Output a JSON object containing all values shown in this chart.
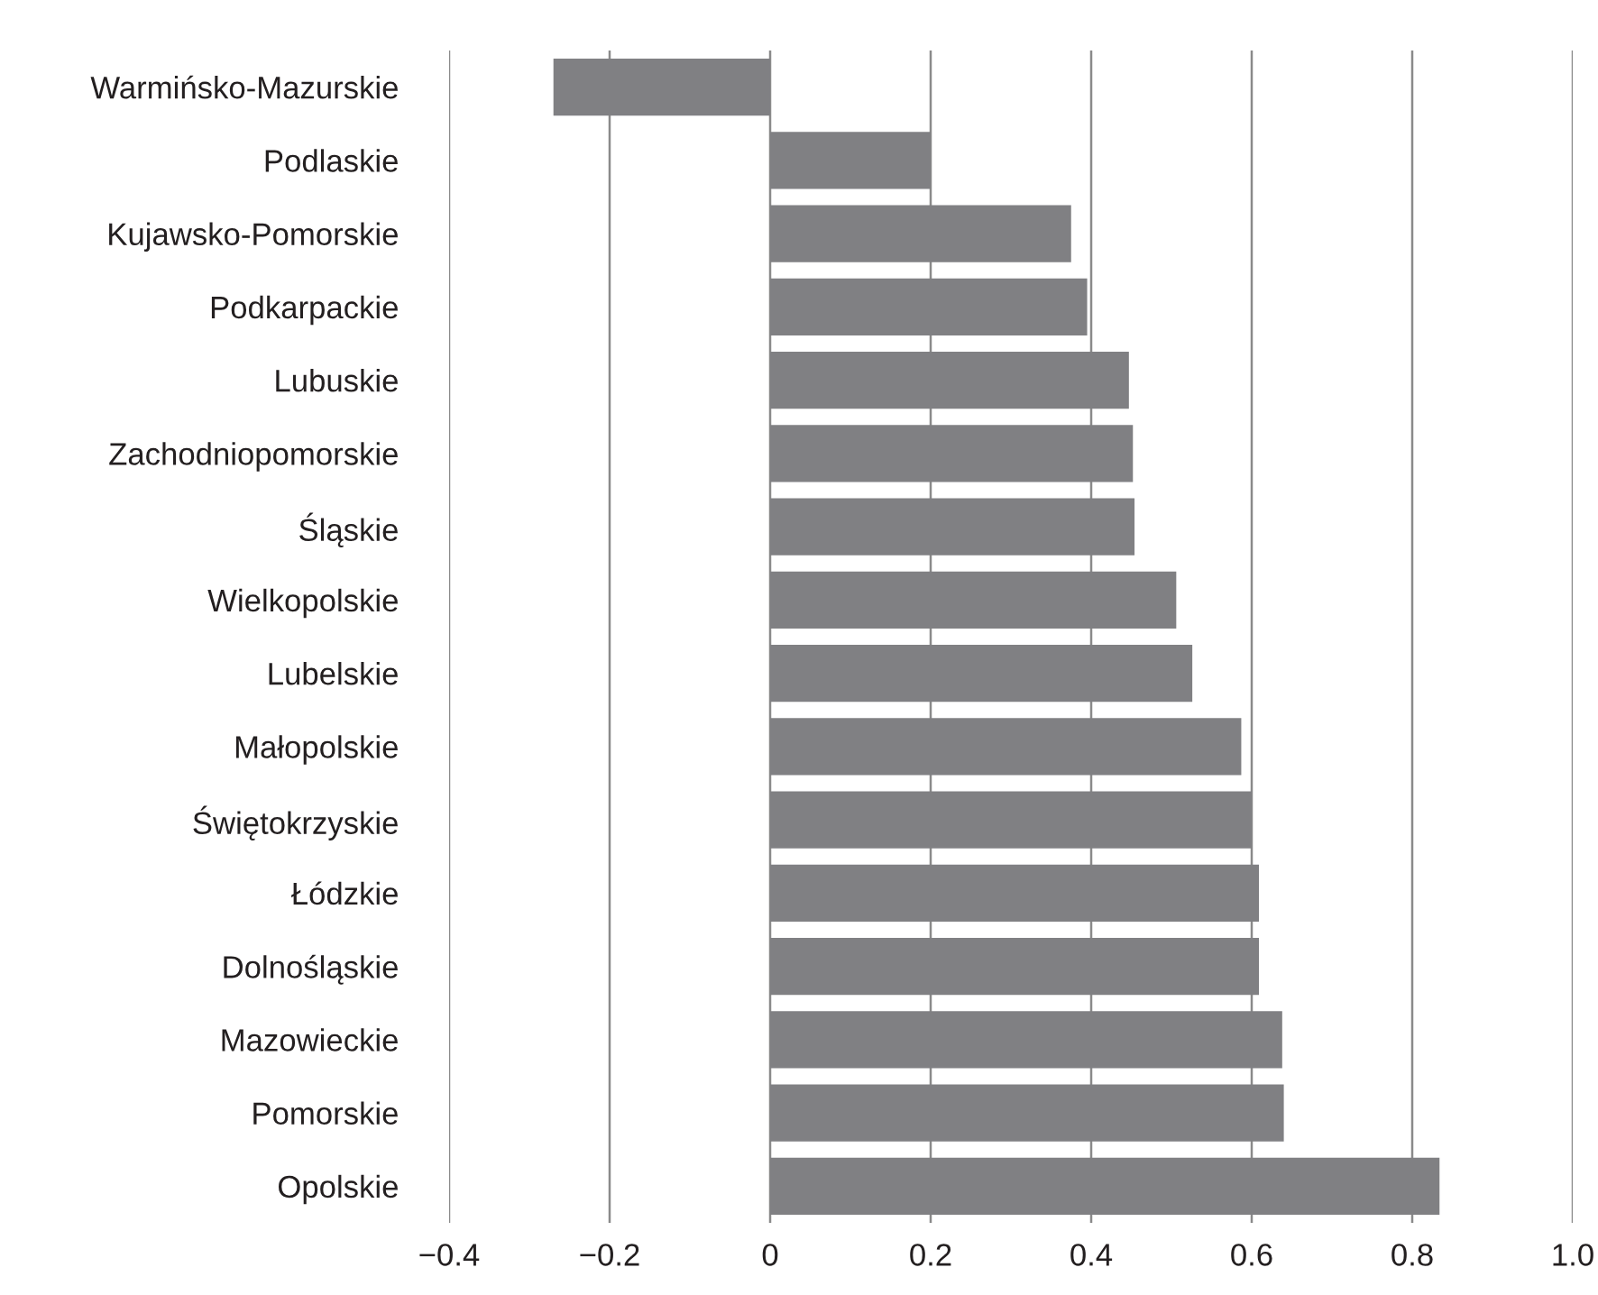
{
  "chart_data": {
    "type": "bar",
    "orientation": "horizontal",
    "categories": [
      "Warmińsko-Mazurskie",
      "Podlaskie",
      "Kujawsko-Pomorskie",
      "Podkarpackie",
      "Lubuskie",
      "Zachodniopomorskie",
      "Śląskie",
      "Wielkopolskie",
      "Lubelskie",
      "Małopolskie",
      "Świętokrzyskie",
      "Łódzkie",
      "Dolnośląskie",
      "Mazowieckie",
      "Pomorskie",
      "Opolskie"
    ],
    "values": [
      -0.27,
      0.2,
      0.375,
      0.395,
      0.447,
      0.452,
      0.454,
      0.506,
      0.526,
      0.587,
      0.6,
      0.609,
      0.609,
      0.638,
      0.64,
      0.834
    ],
    "color": "#808083",
    "xlim": [
      -0.4,
      1.0
    ],
    "xticks": [
      {
        "value": -0.4,
        "label": "−0.4"
      },
      {
        "value": -0.2,
        "label": "−0.2"
      },
      0,
      0.2,
      0.4,
      0.6,
      0.8,
      {
        "value": 1.0,
        "label": "1.0"
      }
    ],
    "grid": "x"
  }
}
